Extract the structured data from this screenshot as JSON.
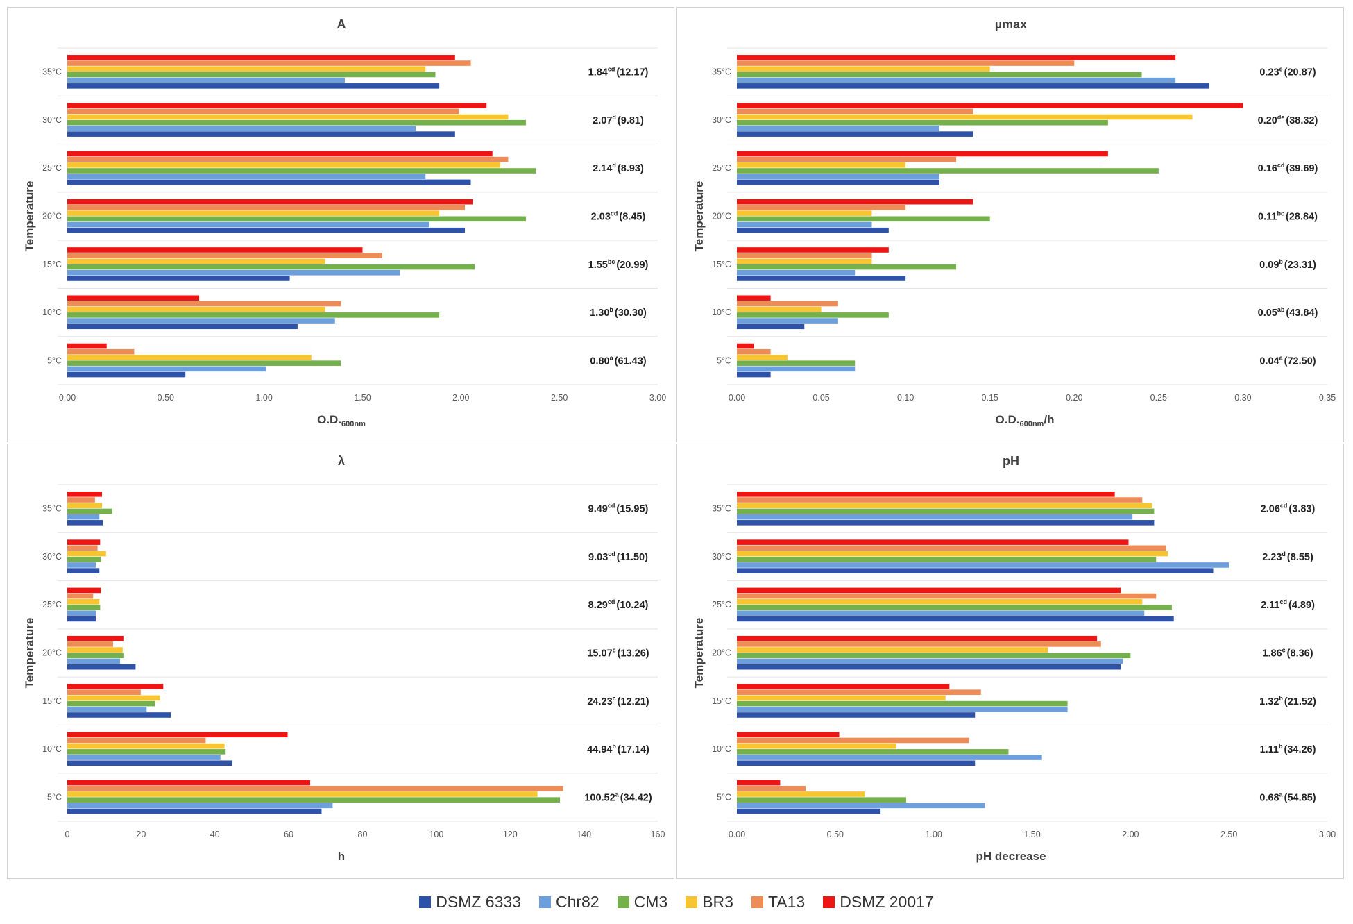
{
  "chart_data": [
    {
      "type": "bar",
      "orientation": "horizontal",
      "title": "A",
      "xlabel": "O.D.",
      "xlabel_sub": "600nm",
      "xlabel_suffix": "",
      "ylabel": "Temperature",
      "xlim": [
        0,
        3
      ],
      "xticks": [
        "0.00",
        "0.50",
        "1.00",
        "1.50",
        "2.00",
        "2.50",
        "3.00"
      ],
      "categories": [
        "35°C",
        "30°C",
        "25°C",
        "20°C",
        "15°C",
        "10°C",
        "5°C"
      ],
      "series": [
        {
          "name": "DSMZ 6333",
          "values": [
            1.89,
            1.97,
            2.05,
            2.02,
            1.13,
            1.17,
            0.6
          ]
        },
        {
          "name": "Chr82",
          "values": [
            1.41,
            1.77,
            1.82,
            1.84,
            1.69,
            1.36,
            1.01
          ]
        },
        {
          "name": "CM3",
          "values": [
            1.87,
            2.33,
            2.38,
            2.33,
            2.07,
            1.89,
            1.39
          ]
        },
        {
          "name": "BR3",
          "values": [
            1.82,
            2.24,
            2.2,
            1.89,
            1.31,
            1.31,
            1.24
          ]
        },
        {
          "name": "TA13",
          "values": [
            2.05,
            1.99,
            2.24,
            2.02,
            1.6,
            1.39,
            0.34
          ]
        },
        {
          "name": "DSMZ 20017",
          "values": [
            1.97,
            2.13,
            2.16,
            2.06,
            1.5,
            0.67,
            0.2
          ]
        }
      ],
      "annotations": [
        {
          "value": "1.84",
          "sup": "cd",
          "cv": "(12.17)"
        },
        {
          "value": "2.07",
          "sup": "d",
          "cv": "(9.81)"
        },
        {
          "value": "2.14",
          "sup": "d",
          "cv": "(8.93)"
        },
        {
          "value": "2.03",
          "sup": "cd",
          "cv": "(8.45)"
        },
        {
          "value": "1.55",
          "sup": "bc",
          "cv": "(20.99)"
        },
        {
          "value": "1.30",
          "sup": "b",
          "cv": "(30.30)"
        },
        {
          "value": "0.80",
          "sup": "a",
          "cv": "(61.43)"
        }
      ]
    },
    {
      "type": "bar",
      "orientation": "horizontal",
      "title": "µmax",
      "xlabel": "O.D.",
      "xlabel_sub": "600nm",
      "xlabel_suffix": "/h",
      "ylabel": "Temperature",
      "xlim": [
        0,
        0.35
      ],
      "xticks": [
        "0.00",
        "0.05",
        "0.10",
        "0.15",
        "0.20",
        "0.25",
        "0.30",
        "0.35"
      ],
      "categories": [
        "35°C",
        "30°C",
        "25°C",
        "20°C",
        "15°C",
        "10°C",
        "5°C"
      ],
      "series": [
        {
          "name": "DSMZ 6333",
          "values": [
            0.28,
            0.14,
            0.12,
            0.09,
            0.1,
            0.04,
            0.02
          ]
        },
        {
          "name": "Chr82",
          "values": [
            0.26,
            0.12,
            0.12,
            0.08,
            0.07,
            0.06,
            0.07
          ]
        },
        {
          "name": "CM3",
          "values": [
            0.24,
            0.22,
            0.25,
            0.15,
            0.13,
            0.09,
            0.07
          ]
        },
        {
          "name": "BR3",
          "values": [
            0.15,
            0.27,
            0.1,
            0.08,
            0.08,
            0.05,
            0.03
          ]
        },
        {
          "name": "TA13",
          "values": [
            0.2,
            0.14,
            0.13,
            0.1,
            0.08,
            0.06,
            0.02
          ]
        },
        {
          "name": "DSMZ 20017",
          "values": [
            0.26,
            0.3,
            0.22,
            0.14,
            0.09,
            0.02,
            0.01
          ]
        }
      ],
      "annotations": [
        {
          "value": "0.23",
          "sup": "e",
          "cv": "(20.87)"
        },
        {
          "value": "0.20",
          "sup": "de",
          "cv": "(38.32)"
        },
        {
          "value": "0.16",
          "sup": "cd",
          "cv": "(39.69)"
        },
        {
          "value": "0.11",
          "sup": "bc",
          "cv": "(28.84)"
        },
        {
          "value": "0.09",
          "sup": "b",
          "cv": "(23.31)"
        },
        {
          "value": "0.05",
          "sup": "ab",
          "cv": "(43.84)"
        },
        {
          "value": "0.04",
          "sup": "a",
          "cv": "(72.50)"
        }
      ]
    },
    {
      "type": "bar",
      "orientation": "horizontal",
      "title": "λ",
      "xlabel": "h",
      "xlabel_sub": "",
      "xlabel_suffix": "",
      "ylabel": "Temperature",
      "xlim": [
        0,
        160
      ],
      "xticks": [
        "0",
        "20",
        "40",
        "60",
        "80",
        "100",
        "120",
        "140",
        "160"
      ],
      "categories": [
        "35°C",
        "30°C",
        "25°C",
        "20°C",
        "15°C",
        "10°C",
        "5°C"
      ],
      "series": [
        {
          "name": "DSMZ 6333",
          "values": [
            9.6,
            8.7,
            7.7,
            18.5,
            28.1,
            44.7,
            68.9
          ]
        },
        {
          "name": "Chr82",
          "values": [
            8.7,
            7.7,
            7.7,
            14.3,
            21.5,
            41.5,
            71.9
          ]
        },
        {
          "name": "CM3",
          "values": [
            12.2,
            9.1,
            8.9,
            15.2,
            23.7,
            42.9,
            133.5
          ]
        },
        {
          "name": "BR3",
          "values": [
            9.4,
            10.5,
            8.7,
            15.0,
            25.1,
            42.6,
            127.4
          ]
        },
        {
          "name": "TA13",
          "values": [
            7.5,
            8.2,
            7.0,
            12.4,
            19.9,
            37.5,
            134.4
          ]
        },
        {
          "name": "DSMZ 20017",
          "values": [
            9.4,
            8.9,
            9.1,
            15.2,
            26.0,
            59.7,
            65.8
          ]
        }
      ],
      "annotations": [
        {
          "value": "9.49",
          "sup": "cd",
          "cv": "(15.95)"
        },
        {
          "value": "9.03",
          "sup": "cd",
          "cv": "(11.50)"
        },
        {
          "value": "8.29",
          "sup": "cd",
          "cv": "(10.24)"
        },
        {
          "value": "15.07",
          "sup": "c",
          "cv": "(13.26)"
        },
        {
          "value": "24.23",
          "sup": "c",
          "cv": "(12.21)"
        },
        {
          "value": "44.94",
          "sup": "b",
          "cv": "(17.14)"
        },
        {
          "value": "100.52",
          "sup": "a",
          "cv": "(34.42)"
        }
      ]
    },
    {
      "type": "bar",
      "orientation": "horizontal",
      "title": "pH",
      "xlabel": "pH decrease",
      "xlabel_sub": "",
      "xlabel_suffix": "",
      "ylabel": "Temperature",
      "xlim": [
        0,
        3
      ],
      "xticks": [
        "0.00",
        "0.50",
        "1.00",
        "1.50",
        "2.00",
        "2.50",
        "3.00"
      ],
      "categories": [
        "35°C",
        "30°C",
        "25°C",
        "20°C",
        "15°C",
        "10°C",
        "5°C"
      ],
      "series": [
        {
          "name": "DSMZ 6333",
          "values": [
            2.12,
            2.42,
            2.22,
            1.95,
            1.21,
            1.21,
            0.73
          ]
        },
        {
          "name": "Chr82",
          "values": [
            2.01,
            2.5,
            2.07,
            1.96,
            1.68,
            1.55,
            1.26
          ]
        },
        {
          "name": "CM3",
          "values": [
            2.12,
            2.13,
            2.21,
            2.0,
            1.68,
            1.38,
            0.86
          ]
        },
        {
          "name": "BR3",
          "values": [
            2.11,
            2.19,
            2.06,
            1.58,
            1.06,
            0.81,
            0.65
          ]
        },
        {
          "name": "TA13",
          "values": [
            2.06,
            2.18,
            2.13,
            1.85,
            1.24,
            1.18,
            0.35
          ]
        },
        {
          "name": "DSMZ 20017",
          "values": [
            1.92,
            1.99,
            1.95,
            1.83,
            1.08,
            0.52,
            0.22
          ]
        }
      ],
      "annotations": [
        {
          "value": "2.06",
          "sup": "cd",
          "cv": "(3.83)"
        },
        {
          "value": "2.23",
          "sup": "d",
          "cv": "(8.55)"
        },
        {
          "value": "2.11",
          "sup": "cd",
          "cv": "(4.89)"
        },
        {
          "value": "1.86",
          "sup": "c",
          "cv": "(8.36)"
        },
        {
          "value": "1.32",
          "sup": "b",
          "cv": "(21.52)"
        },
        {
          "value": "1.11",
          "sup": "b",
          "cv": "(34.26)"
        },
        {
          "value": "0.68",
          "sup": "a",
          "cv": "(54.85)"
        }
      ]
    }
  ],
  "legend": {
    "placement": "bottom",
    "items": [
      {
        "name": "DSMZ 6333",
        "color": "#2e52a8"
      },
      {
        "name": "Chr82",
        "color": "#6d9fdc"
      },
      {
        "name": "CM3",
        "color": "#74b04c"
      },
      {
        "name": "BR3",
        "color": "#f7c531"
      },
      {
        "name": "TA13",
        "color": "#ee8c58"
      },
      {
        "name": "DSMZ 20017",
        "color": "#ee1515"
      }
    ]
  }
}
